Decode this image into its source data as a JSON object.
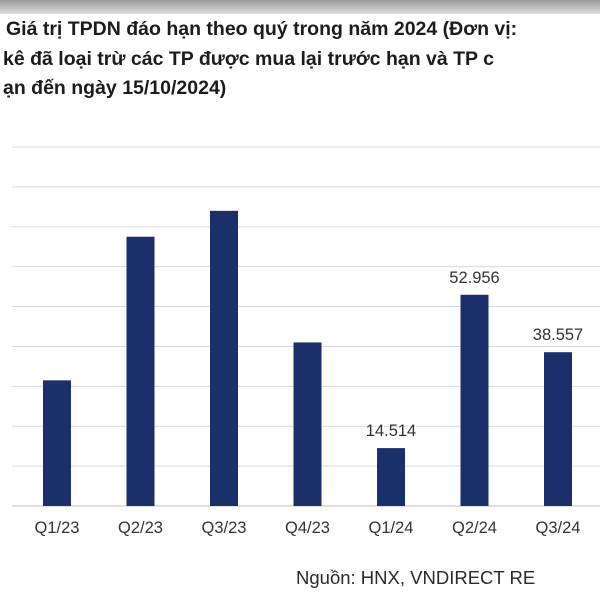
{
  "chart_data": {
    "type": "bar",
    "title_lines": [
      "Giá trị TPDN đáo hạn theo quý trong năm 2024 (Đơn vị:",
      "kê đã loại trừ các TP được mua lại trước hạn và TP c",
      "ạn đến ngày 15/10/2024)"
    ],
    "categories": [
      "Q1/23",
      "Q2/23",
      "Q3/23",
      "Q4/23",
      "Q1/24",
      "Q2/24",
      "Q3/24"
    ],
    "values": [
      31500,
      67500,
      74000,
      41000,
      14514,
      52956,
      38557
    ],
    "data_labels": [
      "",
      "",
      "",
      "",
      "14.514",
      "52.956",
      "38.557"
    ],
    "ylim": [
      0,
      90000
    ],
    "grid_step": 10000,
    "bar_color": "#1b2f6b",
    "gridline_color": "#d9d9d9",
    "source": "Nguồn: HNX, VNDIRECT RE"
  }
}
